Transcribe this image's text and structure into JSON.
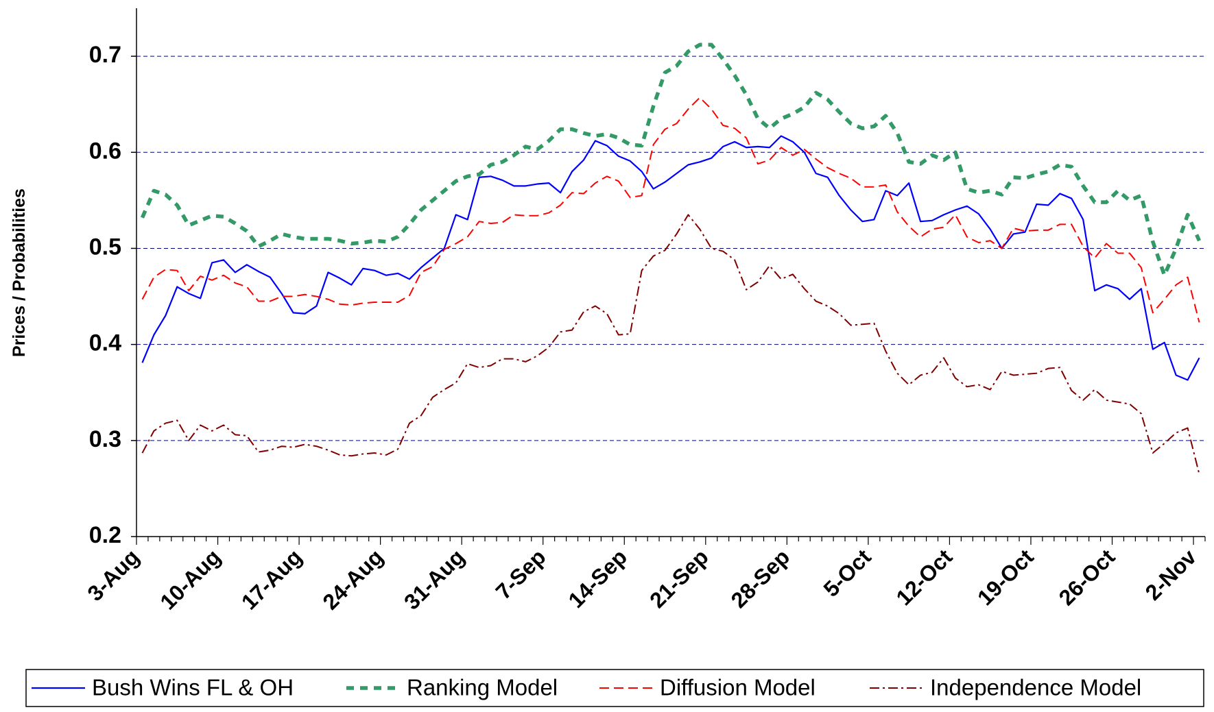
{
  "chart_data": {
    "type": "line",
    "y_label": "Prices / Probabilities",
    "ylim": [
      0.2,
      0.75
    ],
    "yticks": [
      0.2,
      0.3,
      0.4,
      0.5,
      0.6,
      0.7
    ],
    "grid": true,
    "legend": "bottom",
    "categories": [
      "3-Aug",
      null,
      null,
      null,
      null,
      null,
      null,
      "10-Aug",
      null,
      null,
      null,
      null,
      null,
      null,
      "17-Aug",
      null,
      null,
      null,
      null,
      null,
      null,
      "24-Aug",
      null,
      null,
      null,
      null,
      null,
      null,
      "31-Aug",
      null,
      null,
      null,
      null,
      null,
      null,
      "7-Sep",
      null,
      null,
      null,
      null,
      null,
      null,
      "14-Sep",
      null,
      null,
      null,
      null,
      null,
      null,
      "21-Sep",
      null,
      null,
      null,
      null,
      null,
      null,
      "28-Sep",
      null,
      null,
      null,
      null,
      null,
      null,
      "5-Oct",
      null,
      null,
      null,
      null,
      null,
      null,
      "12-Oct",
      null,
      null,
      null,
      null,
      null,
      null,
      "19-Oct",
      null,
      null,
      null,
      null,
      null,
      null,
      "26-Oct",
      null,
      null,
      null,
      null,
      null,
      null,
      "2-Nov"
    ],
    "series": [
      {
        "name": "Bush Wins FL & OH",
        "color": "#0000ff",
        "values": [
          0.381,
          0.41,
          0.43,
          0.46,
          0.453,
          0.448,
          0.485,
          0.488,
          0.475,
          0.483,
          0.476,
          0.47,
          0.453,
          0.433,
          0.432,
          0.44,
          0.475,
          0.469,
          0.462,
          0.479,
          0.477,
          0.472,
          0.474,
          0.468,
          0.48,
          0.49,
          0.5,
          0.535,
          0.53,
          0.574,
          0.575,
          0.571,
          0.565,
          0.565,
          0.567,
          0.568,
          0.558,
          0.58,
          0.592,
          0.612,
          0.607,
          0.596,
          0.591,
          0.58,
          0.562,
          0.569,
          0.578,
          0.587,
          0.59,
          0.594,
          0.606,
          0.611,
          0.605,
          0.606,
          0.605,
          0.617,
          0.611,
          0.6,
          0.578,
          0.574,
          0.555,
          0.54,
          0.528,
          0.53,
          0.56,
          0.555,
          0.568,
          0.528,
          0.529,
          0.535,
          0.54,
          0.544,
          0.536,
          0.52,
          0.5,
          0.515,
          0.517,
          0.546,
          0.545,
          0.557,
          0.552,
          0.53,
          0.456,
          0.462,
          0.458,
          0.447,
          0.458,
          0.395,
          0.402,
          0.368,
          0.363,
          0.386
        ]
      },
      {
        "name": "Ranking Model",
        "color": "#339966",
        "values": [
          0.532,
          0.56,
          0.556,
          0.545,
          0.524,
          0.529,
          0.534,
          0.533,
          0.526,
          0.518,
          0.502,
          0.508,
          0.515,
          0.512,
          0.51,
          0.51,
          0.51,
          0.508,
          0.505,
          0.506,
          0.508,
          0.507,
          0.512,
          0.525,
          0.54,
          0.55,
          0.56,
          0.57,
          0.575,
          0.577,
          0.587,
          0.59,
          0.597,
          0.606,
          0.603,
          0.612,
          0.624,
          0.624,
          0.62,
          0.617,
          0.619,
          0.615,
          0.608,
          0.607,
          0.648,
          0.683,
          0.69,
          0.705,
          0.712,
          0.712,
          0.697,
          0.68,
          0.66,
          0.635,
          0.625,
          0.635,
          0.64,
          0.647,
          0.662,
          0.655,
          0.642,
          0.63,
          0.625,
          0.627,
          0.638,
          0.62,
          0.59,
          0.588,
          0.597,
          0.592,
          0.6,
          0.562,
          0.558,
          0.56,
          0.556,
          0.574,
          0.573,
          0.577,
          0.58,
          0.587,
          0.585,
          0.565,
          0.548,
          0.548,
          0.56,
          0.55,
          0.555,
          0.507,
          0.472,
          0.5,
          0.535,
          0.508
        ]
      },
      {
        "name": "Diffusion Model",
        "color": "#ff0000",
        "values": [
          0.447,
          0.47,
          0.478,
          0.477,
          0.456,
          0.471,
          0.467,
          0.472,
          0.464,
          0.46,
          0.445,
          0.445,
          0.45,
          0.45,
          0.452,
          0.45,
          0.447,
          0.442,
          0.441,
          0.443,
          0.444,
          0.444,
          0.444,
          0.451,
          0.475,
          0.481,
          0.499,
          0.505,
          0.512,
          0.528,
          0.526,
          0.527,
          0.535,
          0.534,
          0.534,
          0.537,
          0.545,
          0.558,
          0.557,
          0.568,
          0.575,
          0.57,
          0.553,
          0.555,
          0.608,
          0.624,
          0.63,
          0.645,
          0.657,
          0.645,
          0.628,
          0.625,
          0.615,
          0.588,
          0.592,
          0.605,
          0.597,
          0.603,
          0.593,
          0.584,
          0.578,
          0.573,
          0.564,
          0.564,
          0.566,
          0.538,
          0.523,
          0.512,
          0.52,
          0.522,
          0.535,
          0.512,
          0.506,
          0.508,
          0.5,
          0.521,
          0.518,
          0.519,
          0.519,
          0.525,
          0.525,
          0.502,
          0.49,
          0.505,
          0.495,
          0.495,
          0.48,
          0.433,
          0.447,
          0.462,
          0.47,
          0.423
        ]
      },
      {
        "name": "Independence Model",
        "color": "#800000",
        "values": [
          0.287,
          0.31,
          0.318,
          0.321,
          0.3,
          0.316,
          0.31,
          0.316,
          0.306,
          0.305,
          0.288,
          0.29,
          0.294,
          0.293,
          0.296,
          0.294,
          0.29,
          0.285,
          0.284,
          0.286,
          0.287,
          0.285,
          0.291,
          0.318,
          0.326,
          0.345,
          0.353,
          0.36,
          0.38,
          0.376,
          0.378,
          0.385,
          0.385,
          0.382,
          0.388,
          0.397,
          0.413,
          0.415,
          0.434,
          0.44,
          0.432,
          0.41,
          0.411,
          0.477,
          0.492,
          0.498,
          0.515,
          0.535,
          0.52,
          0.5,
          0.497,
          0.488,
          0.457,
          0.465,
          0.482,
          0.468,
          0.473,
          0.458,
          0.445,
          0.44,
          0.432,
          0.42,
          0.421,
          0.422,
          0.393,
          0.37,
          0.358,
          0.368,
          0.371,
          0.386,
          0.365,
          0.356,
          0.358,
          0.353,
          0.372,
          0.368,
          0.369,
          0.37,
          0.375,
          0.376,
          0.352,
          0.342,
          0.353,
          0.342,
          0.34,
          0.338,
          0.328,
          0.287,
          0.297,
          0.308,
          0.313,
          0.265
        ]
      }
    ]
  }
}
